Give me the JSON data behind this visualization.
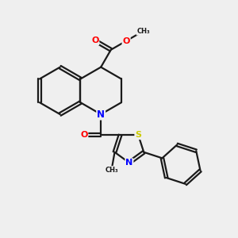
{
  "background_color": "#efefef",
  "bond_color": "#1a1a1a",
  "bond_width": 1.6,
  "atom_colors": {
    "O": "#ff0000",
    "N": "#0000ff",
    "S": "#cccc00",
    "C": "#1a1a1a"
  },
  "font_size": 7.5,
  "figsize": [
    3.0,
    3.0
  ],
  "dpi": 100
}
